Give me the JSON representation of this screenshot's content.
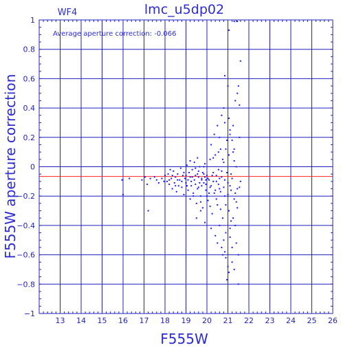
{
  "chart_data": {
    "type": "scatter",
    "title": "lmc_u5dp02",
    "corner_label": "WF4",
    "annotation": "Average aperture correction: -0.066",
    "xlabel": "F555W",
    "ylabel": "F555W aperture correction",
    "xlim": [
      12,
      26
    ],
    "ylim": [
      -1,
      1
    ],
    "xticks": [
      13,
      14,
      15,
      16,
      17,
      18,
      19,
      20,
      21,
      22,
      23,
      24,
      25,
      26
    ],
    "yticks": [
      1,
      0.8,
      0.6,
      0.4,
      0.2,
      0,
      -0.2,
      -0.4,
      -0.6,
      -0.8,
      -1
    ],
    "ytick_labels": [
      "1",
      "0.8",
      "0.6",
      "0.4",
      "0.2",
      "0",
      "−0.2",
      "−0.4",
      "−0.6",
      "−0.8",
      "−1"
    ],
    "grid": true,
    "reference_line": {
      "y": -0.066,
      "color": "#ff2020"
    },
    "colors": {
      "axes": "#1f1fbf",
      "points": "#1a1aff",
      "text": "#2b2bd6"
    },
    "points": [
      [
        15.95,
        -0.09
      ],
      [
        16.0,
        -0.19
      ],
      [
        16.3,
        -0.08
      ],
      [
        16.9,
        -0.09
      ],
      [
        17.05,
        -0.07
      ],
      [
        17.15,
        -0.12
      ],
      [
        17.2,
        -0.3
      ],
      [
        17.3,
        -0.08
      ],
      [
        17.5,
        -0.07
      ],
      [
        17.6,
        -0.09
      ],
      [
        17.7,
        -0.11
      ],
      [
        17.85,
        -0.08
      ],
      [
        17.95,
        -0.1
      ],
      [
        18.0,
        -0.06
      ],
      [
        18.1,
        -0.1
      ],
      [
        18.15,
        -0.05
      ],
      [
        18.2,
        -0.12
      ],
      [
        18.25,
        -0.02
      ],
      [
        18.3,
        -0.08
      ],
      [
        18.35,
        -0.15
      ],
      [
        18.4,
        -0.03
      ],
      [
        18.45,
        -0.11
      ],
      [
        18.5,
        -0.07
      ],
      [
        18.55,
        -0.17
      ],
      [
        18.6,
        -0.05
      ],
      [
        18.65,
        -0.13
      ],
      [
        18.7,
        -0.09
      ],
      [
        18.75,
        -0.01
      ],
      [
        18.8,
        -0.14
      ],
      [
        18.85,
        -0.06
      ],
      [
        18.9,
        -0.19
      ],
      [
        18.95,
        -0.08
      ],
      [
        19.0,
        -0.11
      ],
      [
        19.05,
        0.01
      ],
      [
        19.1,
        -0.16
      ],
      [
        19.15,
        -0.04
      ],
      [
        19.2,
        -0.22
      ],
      [
        19.25,
        -0.1
      ],
      [
        19.3,
        -0.07
      ],
      [
        19.35,
        -0.18
      ],
      [
        19.4,
        0.03
      ],
      [
        19.45,
        -0.12
      ],
      [
        19.5,
        -0.25
      ],
      [
        19.55,
        -0.05
      ],
      [
        19.6,
        -0.14
      ],
      [
        19.65,
        0.0
      ],
      [
        19.7,
        -0.2
      ],
      [
        19.75,
        -0.08
      ],
      [
        19.8,
        -0.28
      ],
      [
        19.85,
        -0.11
      ],
      [
        19.9,
        0.02
      ],
      [
        19.95,
        -0.16
      ],
      [
        20.0,
        -0.06
      ],
      [
        20.05,
        -0.23
      ],
      [
        20.1,
        -0.09
      ],
      [
        20.15,
        0.05
      ],
      [
        20.2,
        -0.13
      ],
      [
        20.25,
        -0.32
      ],
      [
        20.3,
        -0.04
      ],
      [
        20.35,
        -0.18
      ],
      [
        20.4,
        0.08
      ],
      [
        20.45,
        -0.1
      ],
      [
        20.5,
        -0.26
      ],
      [
        20.55,
        -0.02
      ],
      [
        20.6,
        -0.15
      ],
      [
        20.65,
        0.12
      ],
      [
        20.7,
        -0.07
      ],
      [
        20.75,
        -0.35
      ],
      [
        20.8,
        0.03
      ],
      [
        20.85,
        -0.2
      ],
      [
        20.9,
        -0.45
      ],
      [
        20.95,
        0.18
      ],
      [
        21.0,
        -0.11
      ],
      [
        21.05,
        -0.3
      ],
      [
        21.1,
        0.25
      ],
      [
        21.15,
        -0.05
      ],
      [
        21.2,
        -0.55
      ],
      [
        21.25,
        0.1
      ],
      [
        21.3,
        -0.22
      ],
      [
        21.35,
        -0.4
      ],
      [
        21.4,
        0.0
      ],
      [
        21.45,
        -0.15
      ],
      [
        21.5,
        -0.6
      ],
      [
        21.55,
        0.2
      ],
      [
        21.6,
        -0.1
      ],
      [
        19.5,
        -0.35
      ],
      [
        19.7,
        -0.3
      ],
      [
        19.9,
        -0.38
      ],
      [
        20.2,
        -0.42
      ],
      [
        20.4,
        -0.47
      ],
      [
        20.5,
        -0.52
      ],
      [
        20.6,
        -0.4
      ],
      [
        20.7,
        -0.55
      ],
      [
        20.75,
        -0.6
      ],
      [
        20.8,
        -0.5
      ],
      [
        20.85,
        -0.58
      ],
      [
        20.9,
        -0.62
      ],
      [
        21.0,
        -0.68
      ],
      [
        21.05,
        -0.72
      ],
      [
        21.1,
        -0.48
      ],
      [
        21.2,
        -0.65
      ],
      [
        21.3,
        -0.7
      ],
      [
        21.4,
        -0.52
      ],
      [
        21.5,
        -0.8
      ],
      [
        20.95,
        -0.77
      ],
      [
        20.2,
        0.15
      ],
      [
        20.35,
        0.22
      ],
      [
        20.5,
        0.28
      ],
      [
        20.6,
        0.2
      ],
      [
        20.7,
        0.35
      ],
      [
        20.8,
        0.4
      ],
      [
        20.85,
        0.3
      ],
      [
        20.9,
        0.12
      ],
      [
        21.0,
        0.55
      ],
      [
        21.05,
        0.33
      ],
      [
        21.1,
        0.22
      ],
      [
        21.2,
        0.18
      ],
      [
        21.25,
        0.28
      ],
      [
        21.3,
        0.12
      ],
      [
        21.35,
        0.45
      ],
      [
        21.45,
        0.5
      ],
      [
        21.5,
        0.55
      ],
      [
        21.55,
        0.42
      ],
      [
        21.6,
        0.72
      ],
      [
        20.85,
        0.62
      ],
      [
        21.05,
        0.93
      ],
      [
        21.3,
        0.99
      ],
      [
        21.45,
        0.99
      ],
      [
        19.3,
        -0.02
      ],
      [
        19.45,
        -0.06
      ],
      [
        19.6,
        -0.03
      ],
      [
        19.75,
        -0.09
      ],
      [
        19.85,
        -0.05
      ],
      [
        19.95,
        -0.12
      ],
      [
        20.05,
        -0.08
      ],
      [
        20.15,
        -0.14
      ],
      [
        20.3,
        -0.1
      ],
      [
        20.45,
        -0.06
      ],
      [
        20.55,
        -0.12
      ],
      [
        20.65,
        -0.17
      ],
      [
        20.7,
        -0.03
      ],
      [
        20.85,
        -0.09
      ],
      [
        20.95,
        -0.04
      ],
      [
        21.1,
        -0.13
      ],
      [
        21.2,
        -0.08
      ],
      [
        21.35,
        -0.18
      ],
      [
        18.9,
        -0.04
      ],
      [
        19.05,
        -0.13
      ],
      [
        19.2,
        -0.07
      ],
      [
        19.4,
        -0.09
      ],
      [
        19.55,
        -0.15
      ],
      [
        19.65,
        -0.11
      ],
      [
        19.8,
        -0.04
      ],
      [
        19.95,
        -0.09
      ],
      [
        20.1,
        -0.18
      ],
      [
        20.25,
        -0.06
      ],
      [
        20.4,
        -0.16
      ],
      [
        20.6,
        -0.08
      ],
      [
        20.8,
        -0.14
      ],
      [
        21.0,
        -0.19
      ],
      [
        21.15,
        -0.16
      ],
      [
        21.4,
        -0.24
      ],
      [
        21.25,
        -0.35
      ],
      [
        21.1,
        -0.42
      ],
      [
        19.2,
        0.04
      ],
      [
        19.35,
        -0.2
      ],
      [
        19.55,
        0.06
      ],
      [
        19.7,
        -0.24
      ],
      [
        19.85,
        0.0
      ],
      [
        20.0,
        -0.2
      ],
      [
        20.15,
        -0.27
      ],
      [
        20.3,
        0.06
      ],
      [
        20.45,
        -0.22
      ],
      [
        20.55,
        0.1
      ],
      [
        20.65,
        -0.29
      ],
      [
        20.75,
        0.05
      ],
      [
        20.9,
        -0.26
      ],
      [
        21.05,
        0.08
      ],
      [
        21.15,
        -0.37
      ],
      [
        21.3,
        0.04
      ],
      [
        21.45,
        -0.28
      ],
      [
        21.55,
        -0.14
      ],
      [
        18.2,
        -0.09
      ],
      [
        18.35,
        -0.06
      ],
      [
        18.5,
        -0.13
      ],
      [
        18.6,
        -0.09
      ],
      [
        18.8,
        -0.1
      ],
      [
        19.0,
        -0.06
      ],
      [
        19.1,
        -0.09
      ],
      [
        19.25,
        -0.13
      ],
      [
        19.45,
        -0.01
      ],
      [
        19.6,
        -0.07
      ],
      [
        19.75,
        -0.13
      ],
      [
        19.9,
        -0.07
      ]
    ]
  }
}
